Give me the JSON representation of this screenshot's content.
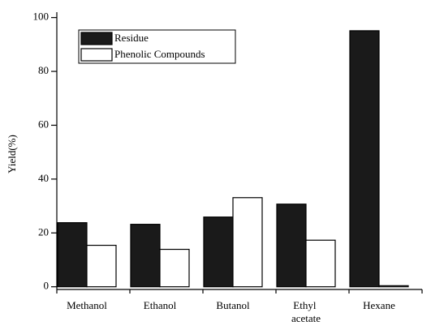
{
  "chart_data": {
    "type": "bar",
    "y_label": "Yield(%)",
    "categories": [
      "Methanol",
      "Ethanol",
      "Butanol",
      "Ethyl acetate",
      "Hexane"
    ],
    "series": [
      {
        "name": "Residue",
        "color": "#1a1a1a",
        "values": [
          23.8,
          23.2,
          25.9,
          30.7,
          95.1
        ]
      },
      {
        "name": "Phenolic Compounds",
        "color": "#ffffff",
        "values": [
          15.4,
          13.9,
          33.1,
          17.3,
          0.4
        ]
      }
    ],
    "ylim": [
      -1,
      102
    ],
    "yticks": [
      0,
      20,
      40,
      60,
      80,
      100
    ],
    "legend": "upper-left"
  }
}
